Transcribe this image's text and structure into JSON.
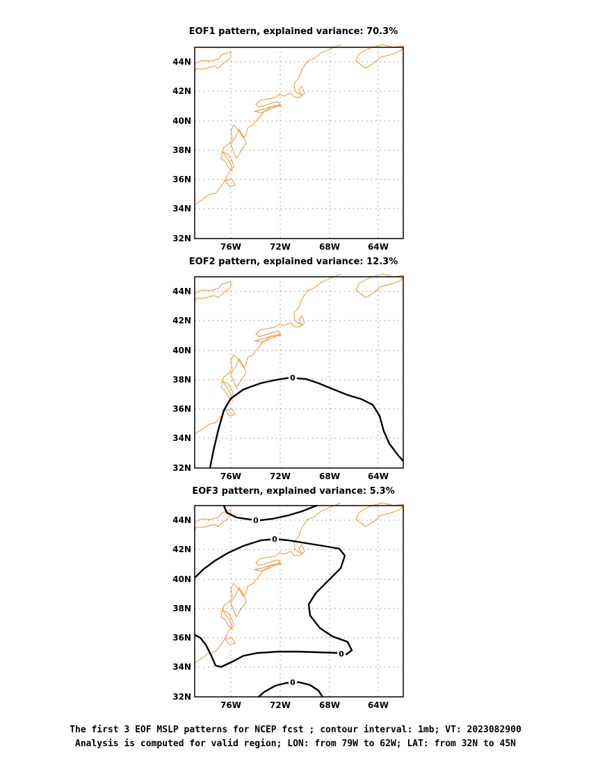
{
  "panels": [
    {
      "title": "EOF1 pattern, explained variance: 70.3%",
      "contour_labels": []
    },
    {
      "title": "EOF2 pattern, explained variance: 12.3%",
      "contour_labels": [
        "0"
      ]
    },
    {
      "title": "EOF3 pattern, explained variance: 5.3%",
      "contour_labels": [
        "0",
        "0",
        "0",
        "0"
      ]
    }
  ],
  "axes": {
    "x_ticks": [
      "76W",
      "72W",
      "68W",
      "64W"
    ],
    "y_ticks": [
      "44N",
      "42N",
      "40N",
      "38N",
      "36N",
      "34N",
      "32N"
    ]
  },
  "caption": {
    "line1": "The first 3 EOF MSLP patterns for NCEP fcst ; contour interval: 1mb; VT: 2023082900",
    "line2": "Analysis is computed for valid region; LON: from 79W to 62W; LAT: from 32N to 45N"
  },
  "colors": {
    "coastline": "#f0a050",
    "contour": "#000000",
    "grid": "#888888"
  }
}
